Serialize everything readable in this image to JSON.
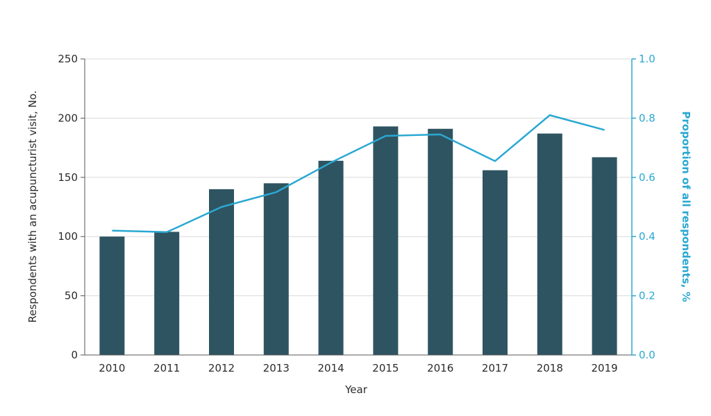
{
  "chart_data": {
    "type": "bar",
    "categories": [
      "2010",
      "2011",
      "2012",
      "2013",
      "2014",
      "2015",
      "2016",
      "2017",
      "2018",
      "2019"
    ],
    "series": [
      {
        "type": "bar",
        "axis": "left",
        "values": [
          100,
          104,
          140,
          145,
          164,
          193,
          191,
          156,
          187,
          167
        ],
        "color": "#2e5461"
      },
      {
        "type": "line",
        "axis": "right",
        "values": [
          0.42,
          0.415,
          0.5,
          0.55,
          0.65,
          0.74,
          0.745,
          0.655,
          0.81,
          0.76
        ],
        "color": "#2aa8d2"
      }
    ],
    "xlabel": "Year",
    "ylabel": "Respondents with an acupuncturist visit, No.",
    "y2label": "Proportion of all respondents, %",
    "ylim": [
      0,
      250
    ],
    "y2lim": [
      0.0,
      1.0
    ],
    "yticks": [
      "0",
      "50",
      "100",
      "150",
      "200",
      "250"
    ],
    "y2ticks": [
      "0.0",
      "0.2",
      "0.4",
      "0.6",
      "0.8",
      "1.0"
    ],
    "grid": true,
    "colors": {
      "bar": "#2e5461",
      "line": "#2aa8d2",
      "axis": "#2aa8d2",
      "grid": "#d9d9d9",
      "text": "#2b2b2b"
    }
  }
}
